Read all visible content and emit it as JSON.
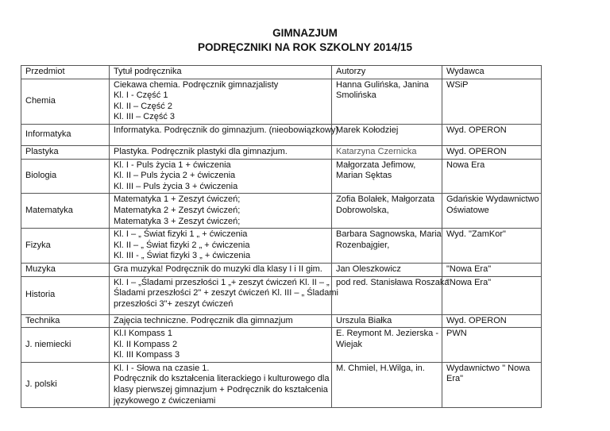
{
  "title": {
    "line1": "GIMNAZJUM",
    "line2": "PODRĘCZNIKI NA ROK SZKOLNY 2014/15"
  },
  "table": {
    "headers": [
      "Przedmiot",
      "Tytuł podręcznika",
      "Autorzy",
      "Wydawca"
    ],
    "rows": [
      {
        "subject": "Chemia",
        "title": [
          "Ciekawa chemia. Podręcznik gimnazjalisty",
          "Kl. I - Część 1",
          "Kl. II – Część 2",
          "Kl. III – Część 3"
        ],
        "authors": [
          "Hanna Gulińska, Janina",
          "Smolińska"
        ],
        "publisher": [
          "WSiP"
        ]
      },
      {
        "subject": "Informatyka",
        "title": [
          "Informatyka. Podręcznik do gimnazjum. (nieobowiązkowy)"
        ],
        "authors": [
          "Marek Kołodziej"
        ],
        "publisher": [
          "Wyd. OPERON"
        ]
      },
      {
        "subject": "Plastyka",
        "title": [
          "Plastyka. Podręcznik plastyki dla gimnazjum."
        ],
        "authors": [
          "Katarzyna Czernicka"
        ],
        "publisher": [
          "Wyd. OPERON"
        ]
      },
      {
        "subject": "Biologia",
        "title": [
          "Kl. I - Puls życia 1 + ćwiczenia",
          "Kl. II – Puls życia 2 + ćwiczenia",
          "Kl. III – Puls życia 3 + ćwiczenia"
        ],
        "authors": [
          "Małgorzata Jefimow,",
          "Marian Sęktas"
        ],
        "publisher": [
          "Nowa Era"
        ]
      },
      {
        "subject": "Matematyka",
        "title": [
          "Matematyka 1 + Zeszyt ćwiczeń;",
          "Matematyka 2 + Zeszyt ćwiczeń;",
          "Matematyka 3 + Zeszyt ćwiczeń;"
        ],
        "authors": [
          "Zofia Bolałek, Małgorzata",
          "Dobrowolska,"
        ],
        "publisher": [
          "Gdańskie Wydawnictwo",
          "Oświatowe"
        ]
      },
      {
        "subject": "Fizyka",
        "title": [
          "Kl. I – „ Świat fizyki 1 „ + ćwiczenia",
          "Kl. II – „ Świat fizyki 2 „ + ćwiczenia",
          "Kl. III - „ Świat fizyki 3 „ + ćwiczenia"
        ],
        "authors": [
          "Barbara Sagnowska, Maria",
          "Rozenbajgier,"
        ],
        "publisher": [
          "Wyd. \"ZamKor\""
        ]
      },
      {
        "subject": "Muzyka",
        "title": [
          "Gra muzyka! Podręcznik do muzyki dla klasy I i II gim."
        ],
        "authors": [
          "Jan Oleszkowicz"
        ],
        "publisher": [
          "\"Nowa Era\""
        ]
      },
      {
        "subject": "Historia",
        "title": [
          "Kl. I – „Śladami przeszłości 1 „+ zeszyt ćwiczeń Kl. II – „",
          "Śladami przeszłości 2\" + zeszyt ćwiczeń Kl. III – „ Śladami",
          "przeszłości 3\"+ zeszyt ćwiczeń"
        ],
        "authors": [
          "pod red. Stanisława Roszaka"
        ],
        "publisher": [
          "\"Nowa Era\""
        ]
      },
      {
        "subject": "Technika",
        "title": [
          "Zajęcia techniczne. Podręcznik dla gimnazjum"
        ],
        "authors": [
          "Urszula Białka"
        ],
        "publisher": [
          "Wyd. OPERON"
        ]
      },
      {
        "subject": "J. niemiecki",
        "title": [
          "Kl.I Kompass 1",
          "Kl. II Kompass 2",
          "Kl. III Kompass 3"
        ],
        "authors": [
          "E. Reymont M. Jezierska -",
          "Wiejak"
        ],
        "publisher": [
          "PWN"
        ]
      },
      {
        "subject": "J. polski",
        "title": [
          "Kl. I - Słowa na czasie 1.",
          "Podręcznik do kształcenia literackiego i kulturowego dla",
          "klasy pierwszej gimnazjum + Podręcznik do kształcenia",
          "językowego z ćwiczeniami"
        ],
        "authors": [
          "M. Chmiel, H.Wilga, in."
        ],
        "publisher": [
          "Wydawnictwo \" Nowa",
          "Era\""
        ]
      }
    ]
  }
}
